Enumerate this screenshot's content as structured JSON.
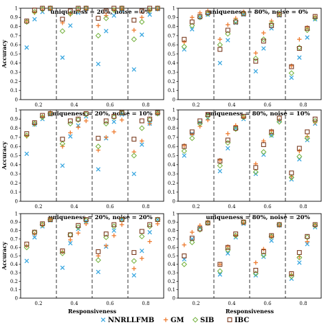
{
  "chart_data": {
    "type": "scatter",
    "x_categories": [
      "0.2",
      "0.4",
      "0.6",
      "0.8"
    ],
    "xlabel": "Responsiveness",
    "ylabel": "Accuracy",
    "y_ticks": [
      "0",
      "0.1",
      "0.2",
      "0.3",
      "0.4",
      "0.5",
      "0.6",
      "0.7",
      "0.8",
      "0.9",
      "1"
    ],
    "ylim": [
      0,
      1
    ],
    "legend": {
      "placement": "bottom-center",
      "entries": [
        {
          "name": "NNRLLFMB",
          "marker": "x",
          "color": "#3aa7e0"
        },
        {
          "name": "GM",
          "marker": "+",
          "color": "#ee7a2e"
        },
        {
          "name": "SIB",
          "marker": "diamond",
          "color": "#7ab547"
        },
        {
          "name": "IBC",
          "marker": "square",
          "color": "#7a3a1e"
        }
      ]
    },
    "panels": [
      {
        "title": "uniqueness = 20%, noise = 0%",
        "series": [
          {
            "name": "NNRLLFMB",
            "groups": [
              [
                0.57,
                0.88,
                0.96,
                0.99
              ],
              [
                0.46,
                0.81,
                0.95,
                0.99
              ],
              [
                0.39,
                0.75,
                0.92,
                0.98
              ],
              [
                0.33,
                0.71,
                0.93,
                0.99
              ]
            ]
          },
          {
            "name": "GM",
            "groups": [
              [
                0.86,
                0.95,
                0.98,
                0.99
              ],
              [
                0.84,
                0.93,
                0.97,
                0.99
              ],
              [
                0.81,
                0.92,
                0.98,
                0.99
              ],
              [
                0.76,
                0.9,
                0.97,
                0.99
              ]
            ]
          },
          {
            "name": "SIB",
            "groups": [
              [
                0.85,
                0.96,
                0.99,
                1.0
              ],
              [
                0.75,
                0.94,
                0.99,
                1.0
              ],
              [
                0.7,
                0.89,
                0.98,
                1.0
              ],
              [
                0.66,
                0.85,
                0.98,
                1.0
              ]
            ]
          },
          {
            "name": "IBC",
            "groups": [
              [
                0.86,
                0.98,
                1.0,
                1.0
              ],
              [
                0.88,
                0.97,
                1.0,
                1.0
              ],
              [
                0.89,
                0.97,
                1.0,
                1.0
              ],
              [
                0.87,
                0.97,
                1.0,
                1.0
              ]
            ]
          }
        ]
      },
      {
        "title": "uniqueness = 80%, noise = 0%",
        "series": [
          {
            "name": "NNRLLFMB",
            "groups": [
              [
                0.55,
                0.77,
                0.9,
                0.93
              ],
              [
                0.4,
                0.65,
                0.84,
                0.93
              ],
              [
                0.31,
                0.56,
                0.78,
                0.92
              ],
              [
                0.24,
                0.46,
                0.68,
                0.88
              ]
            ]
          },
          {
            "name": "GM",
            "groups": [
              [
                0.63,
                0.9,
                0.95,
                0.97
              ],
              [
                0.66,
                0.82,
                0.89,
                0.96
              ],
              [
                0.51,
                0.73,
                0.86,
                0.93
              ],
              [
                0.37,
                0.66,
                0.79,
                0.91
              ]
            ]
          },
          {
            "name": "SIB",
            "groups": [
              [
                0.58,
                0.81,
                0.9,
                0.94
              ],
              [
                0.6,
                0.72,
                0.86,
                0.94
              ],
              [
                0.45,
                0.66,
                0.83,
                0.94
              ],
              [
                0.29,
                0.57,
                0.76,
                0.89
              ]
            ]
          },
          {
            "name": "IBC",
            "groups": [
              [
                0.66,
                0.85,
                0.91,
                0.95
              ],
              [
                0.55,
                0.76,
                0.85,
                0.94
              ],
              [
                0.42,
                0.64,
                0.81,
                0.93
              ],
              [
                0.36,
                0.56,
                0.78,
                0.91
              ]
            ]
          }
        ]
      },
      {
        "title": "uniqueness = 20%, noise = 10%",
        "series": [
          {
            "name": "NNRLLFMB",
            "groups": [
              [
                0.52,
                0.84,
                0.9,
                0.95
              ],
              [
                0.39,
                0.71,
                0.83,
                0.93
              ],
              [
                0.35,
                0.69,
                0.87,
                0.95
              ],
              [
                0.3,
                0.62,
                0.85,
                0.96
              ]
            ]
          },
          {
            "name": "GM",
            "groups": [
              [
                0.71,
                0.84,
                0.93,
                0.97
              ],
              [
                0.6,
                0.75,
                0.81,
                0.88
              ],
              [
                0.56,
                0.7,
                0.76,
                0.89
              ],
              [
                0.54,
                0.66,
                0.85,
                0.96
              ]
            ]
          },
          {
            "name": "SIB",
            "groups": [
              [
                0.72,
                0.85,
                0.92,
                0.96
              ],
              [
                0.63,
                0.85,
                0.89,
                0.95
              ],
              [
                0.6,
                0.85,
                0.92,
                0.97
              ],
              [
                0.5,
                0.8,
                0.89,
                0.96
              ]
            ]
          },
          {
            "name": "IBC",
            "groups": [
              [
                0.74,
                0.86,
                0.94,
                0.96
              ],
              [
                0.68,
                0.88,
                0.9,
                0.96
              ],
              [
                0.69,
                0.88,
                0.93,
                0.97
              ],
              [
                0.68,
                0.88,
                0.9,
                0.97
              ]
            ]
          }
        ]
      },
      {
        "title": "uniqueness = 80%, noise = 10%",
        "series": [
          {
            "name": "NNRLLFMB",
            "groups": [
              [
                0.5,
                0.74,
                0.86,
                0.91
              ],
              [
                0.33,
                0.58,
                0.8,
                0.9
              ],
              [
                0.3,
                0.51,
                0.72,
                0.88
              ],
              [
                0.24,
                0.46,
                0.67,
                0.85
              ]
            ]
          },
          {
            "name": "GM",
            "groups": [
              [
                0.61,
                0.73,
                0.82,
                0.89
              ],
              [
                0.45,
                0.74,
                0.83,
                0.92
              ],
              [
                0.41,
                0.66,
                0.77,
                0.89
              ],
              [
                0.27,
                0.55,
                0.71,
                0.86
              ]
            ]
          },
          {
            "name": "SIB",
            "groups": [
              [
                0.55,
                0.69,
                0.85,
                0.93
              ],
              [
                0.39,
                0.64,
                0.79,
                0.92
              ],
              [
                0.32,
                0.54,
                0.73,
                0.87
              ],
              [
                0.26,
                0.49,
                0.69,
                0.88
              ]
            ]
          },
          {
            "name": "IBC",
            "groups": [
              [
                0.6,
                0.76,
                0.88,
                0.95
              ],
              [
                0.44,
                0.67,
                0.8,
                0.93
              ],
              [
                0.37,
                0.62,
                0.76,
                0.91
              ],
              [
                0.31,
                0.58,
                0.76,
                0.9
              ]
            ]
          }
        ]
      },
      {
        "title": "uniqueness = 20%, noise = 20%",
        "series": [
          {
            "name": "NNRLLFMB",
            "groups": [
              [
                0.44,
                0.72,
                0.85,
                0.92
              ],
              [
                0.36,
                0.65,
                0.82,
                0.91
              ],
              [
                0.31,
                0.61,
                0.8,
                0.93
              ],
              [
                0.27,
                0.56,
                0.78,
                0.93
              ]
            ]
          },
          {
            "name": "GM",
            "groups": [
              [
                0.62,
                0.76,
                0.86,
                0.93
              ],
              [
                0.55,
                0.69,
                0.77,
                0.88
              ],
              [
                0.5,
                0.62,
                0.74,
                0.87
              ],
              [
                0.35,
                0.47,
                0.67,
                0.88
              ]
            ]
          },
          {
            "name": "SIB",
            "groups": [
              [
                0.6,
                0.78,
                0.87,
                0.93
              ],
              [
                0.53,
                0.75,
                0.84,
                0.92
              ],
              [
                0.45,
                0.72,
                0.85,
                0.93
              ],
              [
                0.44,
                0.73,
                0.85,
                0.93
              ]
            ]
          },
          {
            "name": "IBC",
            "groups": [
              [
                0.64,
                0.78,
                0.88,
                0.93
              ],
              [
                0.56,
                0.75,
                0.86,
                0.93
              ],
              [
                0.55,
                0.76,
                0.87,
                0.93
              ],
              [
                0.54,
                0.79,
                0.87,
                0.93
              ]
            ]
          }
        ]
      },
      {
        "title": "uniqueness = 80%, noise = 20%",
        "series": [
          {
            "name": "NNRLLFMB",
            "groups": [
              [
                0.46,
                0.7,
                0.83,
                0.89
              ],
              [
                0.28,
                0.53,
                0.72,
                0.88
              ],
              [
                0.27,
                0.49,
                0.68,
                0.86
              ],
              [
                0.23,
                0.42,
                0.64,
                0.84
              ]
            ]
          },
          {
            "name": "GM",
            "groups": [
              [
                0.63,
                0.78,
                0.86,
                0.9
              ],
              [
                0.4,
                0.61,
                0.74,
                0.89
              ],
              [
                0.42,
                0.58,
                0.73,
                0.86
              ],
              [
                0.28,
                0.49,
                0.67,
                0.87
              ]
            ]
          },
          {
            "name": "SIB",
            "groups": [
              [
                0.4,
                0.66,
                0.81,
                0.89
              ],
              [
                0.32,
                0.57,
                0.74,
                0.9
              ],
              [
                0.29,
                0.51,
                0.73,
                0.87
              ],
              [
                0.26,
                0.48,
                0.72,
                0.86
              ]
            ]
          },
          {
            "name": "IBC",
            "groups": [
              [
                0.5,
                0.71,
                0.82,
                0.89
              ],
              [
                0.4,
                0.6,
                0.76,
                0.9
              ],
              [
                0.33,
                0.55,
                0.74,
                0.87
              ],
              [
                0.29,
                0.54,
                0.73,
                0.87
              ]
            ]
          }
        ]
      }
    ]
  }
}
